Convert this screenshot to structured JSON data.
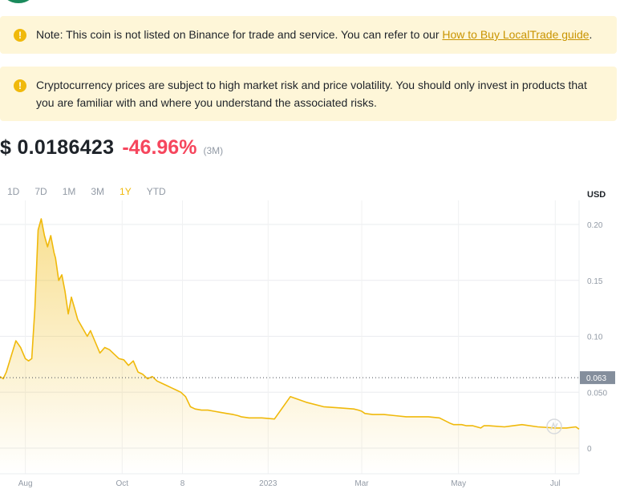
{
  "notices": {
    "listing": {
      "text": "Note: This coin is not listed on Binance for trade and service. You can refer to our ",
      "link": "How to Buy LocalTrade guide",
      "suffix": "."
    },
    "risk": {
      "text": "Cryptocurrency prices are subject to high market risk and price volatility. You should only invest in products that you are familiar with and where you understand the associated risks."
    }
  },
  "price": {
    "value": "$ 0.0186423",
    "change": "-46.96%",
    "period": "(3M)"
  },
  "ranges": [
    "1D",
    "7D",
    "1M",
    "3M",
    "1Y",
    "YTD"
  ],
  "active_range": "1Y",
  "colors": {
    "accent": "#f0b90b",
    "negative": "#f6465d",
    "notice_bg": "#fef6d8",
    "crosshair_label_bg": "#848e9c"
  },
  "chart_data": {
    "type": "area",
    "ylabel": "USD",
    "yticks": [
      0.2,
      0.15,
      0.1,
      0.05,
      0
    ],
    "ytick_labels": [
      "0.20",
      "0.15",
      "0.10",
      "0.050",
      "0"
    ],
    "ylim": [
      0,
      0.21
    ],
    "xlim": [
      "2022-07-16",
      "2023-07-16"
    ],
    "xticks": [
      {
        "date": "2022-08-01",
        "label": "Aug"
      },
      {
        "date": "2022-10-01",
        "label": "Oct"
      },
      {
        "date": "2022-11-08",
        "label": "8"
      },
      {
        "date": "2023-01-01",
        "label": "2023"
      },
      {
        "date": "2023-03-01",
        "label": "Mar"
      },
      {
        "date": "2023-05-01",
        "label": "May"
      },
      {
        "date": "2023-07-01",
        "label": "Jul"
      }
    ],
    "crosshair": {
      "value": 0.063,
      "label": "0.063"
    },
    "grid": true,
    "series": [
      {
        "x": [
          "2022-07-16",
          "2022-07-18",
          "2022-07-20",
          "2022-07-23",
          "2022-07-26",
          "2022-07-29",
          "2022-08-01",
          "2022-08-03",
          "2022-08-05",
          "2022-08-07",
          "2022-08-09",
          "2022-08-11",
          "2022-08-13",
          "2022-08-15",
          "2022-08-17",
          "2022-08-19",
          "2022-08-20",
          "2022-08-22",
          "2022-08-24",
          "2022-08-26",
          "2022-08-28",
          "2022-08-30",
          "2022-09-01",
          "2022-09-03",
          "2022-09-05",
          "2022-09-07",
          "2022-09-09",
          "2022-09-11",
          "2022-09-14",
          "2022-09-17",
          "2022-09-20",
          "2022-09-23",
          "2022-09-26",
          "2022-09-29",
          "2022-10-02",
          "2022-10-05",
          "2022-10-08",
          "2022-10-11",
          "2022-10-14",
          "2022-10-17",
          "2022-10-20",
          "2022-10-23",
          "2022-10-26",
          "2022-10-29",
          "2022-11-01",
          "2022-11-04",
          "2022-11-07",
          "2022-11-10",
          "2022-11-13",
          "2022-11-16",
          "2022-11-20",
          "2022-11-24",
          "2022-11-28",
          "2022-12-02",
          "2022-12-06",
          "2022-12-10",
          "2022-12-13",
          "2022-12-15",
          "2022-12-20",
          "2022-12-28",
          "2023-01-05",
          "2023-01-15",
          "2023-01-25",
          "2023-02-05",
          "2023-02-15",
          "2023-02-24",
          "2023-02-27",
          "2023-03-01",
          "2023-03-03",
          "2023-03-08",
          "2023-03-15",
          "2023-03-22",
          "2023-03-29",
          "2023-04-05",
          "2023-04-12",
          "2023-04-19",
          "2023-04-26",
          "2023-04-28",
          "2023-05-01",
          "2023-05-03",
          "2023-05-06",
          "2023-05-10",
          "2023-05-15",
          "2023-05-17",
          "2023-05-20",
          "2023-05-30",
          "2023-06-10",
          "2023-06-20",
          "2023-07-01",
          "2023-07-08",
          "2023-07-14",
          "2023-07-16"
        ],
        "values": [
          0.064,
          0.062,
          0.068,
          0.082,
          0.096,
          0.09,
          0.08,
          0.078,
          0.08,
          0.125,
          0.195,
          0.205,
          0.19,
          0.18,
          0.19,
          0.175,
          0.17,
          0.15,
          0.155,
          0.14,
          0.12,
          0.135,
          0.125,
          0.115,
          0.11,
          0.105,
          0.1,
          0.105,
          0.095,
          0.085,
          0.09,
          0.088,
          0.084,
          0.08,
          0.079,
          0.074,
          0.078,
          0.068,
          0.066,
          0.062,
          0.064,
          0.06,
          0.058,
          0.056,
          0.054,
          0.052,
          0.05,
          0.046,
          0.037,
          0.035,
          0.034,
          0.034,
          0.033,
          0.032,
          0.031,
          0.03,
          0.029,
          0.028,
          0.027,
          0.027,
          0.026,
          0.046,
          0.041,
          0.037,
          0.036,
          0.035,
          0.034,
          0.033,
          0.031,
          0.03,
          0.03,
          0.029,
          0.028,
          0.028,
          0.028,
          0.027,
          0.022,
          0.021,
          0.021,
          0.021,
          0.02,
          0.02,
          0.018,
          0.02,
          0.02,
          0.019,
          0.021,
          0.019,
          0.018,
          0.018,
          0.019,
          0.017
        ]
      }
    ]
  }
}
